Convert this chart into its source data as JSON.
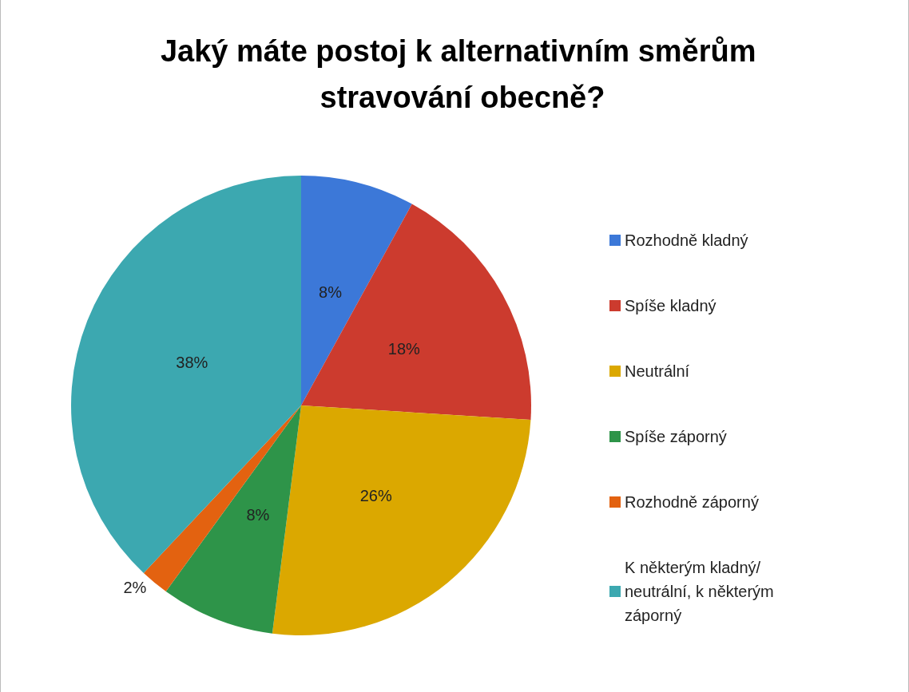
{
  "chart_data": {
    "type": "pie",
    "title": "Jaký máte postoj k alternativním směrům stravování obecně?",
    "categories": [
      "Rozhodně kladný",
      "Spíše kladný",
      "Neutrální",
      "Spíše záporný",
      "Rozhodně záporný",
      "K některým kladný/neutrální, k některým záporný"
    ],
    "values": [
      8,
      18,
      26,
      8,
      2,
      38
    ],
    "colors": [
      "#3c78d8",
      "#cc3b2e",
      "#dba800",
      "#2e9449",
      "#e36210",
      "#3ca8b0"
    ],
    "value_labels": [
      "8%",
      "18%",
      "26%",
      "8%",
      "2%",
      "38%"
    ],
    "legend": "right"
  }
}
